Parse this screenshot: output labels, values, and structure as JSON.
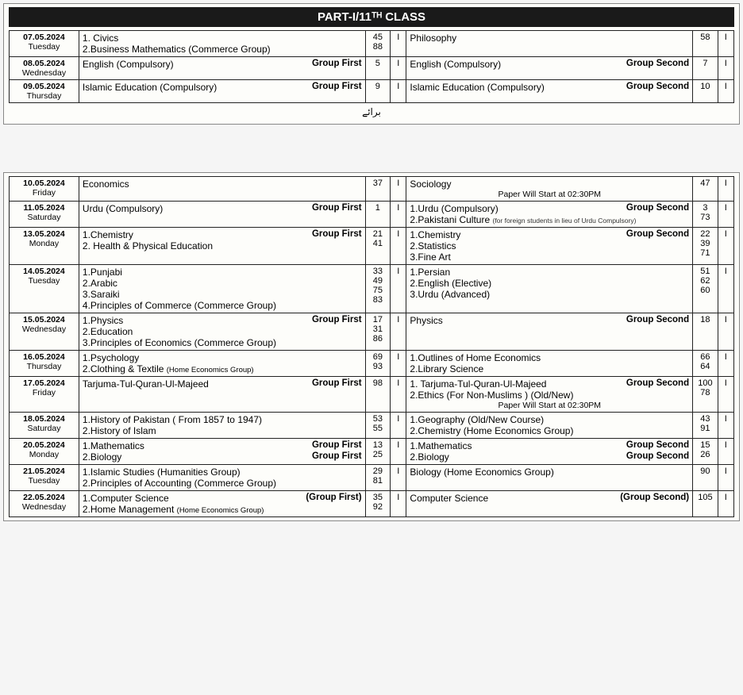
{
  "header": {
    "title": "PART-I/11ᵀᴴ CLASS"
  },
  "footer_urdu": "برائے",
  "section1_rows": [
    {
      "date": "07.05.2024",
      "day": "Tuesday",
      "left_lines": [
        {
          "text": "1. Civics",
          "tag": ""
        },
        {
          "text": "2.Business Mathematics   (Commerce Group)",
          "tag": ""
        }
      ],
      "left_nums": [
        "45",
        "88"
      ],
      "left_sess": "I",
      "right_lines": [
        {
          "text": "Philosophy",
          "tag": ""
        }
      ],
      "right_nums": [
        "58"
      ],
      "right_sess": "I"
    },
    {
      "date": "08.05.2024",
      "day": "Wednesday",
      "left_lines": [
        {
          "text": "English  (Compulsory)",
          "tag": "Group First"
        }
      ],
      "left_nums": [
        "5"
      ],
      "left_sess": "I",
      "right_lines": [
        {
          "text": "English (Compulsory)",
          "tag": "Group  Second"
        }
      ],
      "right_nums": [
        "7"
      ],
      "right_sess": "I"
    },
    {
      "date": "09.05.2024",
      "day": "Thursday",
      "left_lines": [
        {
          "text": "Islamic Education (Compulsory)",
          "tag": "Group First"
        }
      ],
      "left_nums": [
        "9"
      ],
      "left_sess": "I",
      "right_lines": [
        {
          "text": "Islamic Education (Compulsory)",
          "tag": "Group  Second"
        }
      ],
      "right_nums": [
        "10"
      ],
      "right_sess": "I"
    }
  ],
  "section2_rows": [
    {
      "date": "10.05.2024",
      "day": "Friday",
      "left_lines": [
        {
          "text": "Economics",
          "tag": ""
        }
      ],
      "left_nums": [
        "37"
      ],
      "left_sess": "I",
      "right_lines": [
        {
          "text": "Sociology",
          "tag": ""
        },
        {
          "text": "",
          "tag": "",
          "note": "Paper Will Start at 02:30PM"
        }
      ],
      "right_nums": [
        "47"
      ],
      "right_sess": "I"
    },
    {
      "date": "11.05.2024",
      "day": "Saturday",
      "left_lines": [
        {
          "text": "Urdu (Compulsory)",
          "tag": "Group First"
        }
      ],
      "left_nums": [
        "1"
      ],
      "left_sess": "I",
      "right_lines": [
        {
          "text": "1.Urdu (Compulsory)",
          "tag": "Group Second"
        },
        {
          "text": "2.Pakistani Culture",
          "tag": "",
          "xnote": "(for foreign students in lieu of Urdu Compulsory)"
        }
      ],
      "right_nums": [
        "3",
        "73"
      ],
      "right_sess": "I"
    },
    {
      "date": "13.05.2024",
      "day": "Monday",
      "left_lines": [
        {
          "text": "1.Chemistry",
          "tag": "Group First"
        },
        {
          "text": "2. Health & Physical Education",
          "tag": ""
        }
      ],
      "left_nums": [
        "21",
        "41"
      ],
      "left_sess": "I",
      "right_lines": [
        {
          "text": "1.Chemistry",
          "tag": "Group Second"
        },
        {
          "text": "2.Statistics",
          "tag": ""
        },
        {
          "text": "3.Fine Art",
          "tag": ""
        }
      ],
      "right_nums": [
        "22",
        "39",
        "71"
      ],
      "right_sess": "I"
    },
    {
      "date": "14.05.2024",
      "day": "Tuesday",
      "left_lines": [
        {
          "text": "1.Punjabi",
          "tag": ""
        },
        {
          "text": "2.Arabic",
          "tag": ""
        },
        {
          "text": "3.Saraiki",
          "tag": ""
        },
        {
          "text": "4.Principles of Commerce (Commerce Group)",
          "tag": ""
        }
      ],
      "left_nums": [
        "33",
        "49",
        "75",
        "83"
      ],
      "left_sess": "I",
      "right_lines": [
        {
          "text": "1.Persian",
          "tag": ""
        },
        {
          "text": "2.English (Elective)",
          "tag": ""
        },
        {
          "text": "3.Urdu (Advanced)",
          "tag": ""
        }
      ],
      "right_nums": [
        "51",
        "62",
        "60"
      ],
      "right_sess": "I"
    },
    {
      "date": "15.05.2024",
      "day": "Wednesday",
      "left_lines": [
        {
          "text": "1.Physics",
          "tag": "Group First"
        },
        {
          "text": "2.Education",
          "tag": ""
        },
        {
          "text": "3.Principles of Economics (Commerce Group)",
          "tag": ""
        }
      ],
      "left_nums": [
        "17",
        "31",
        "86"
      ],
      "left_sess": "I",
      "right_lines": [
        {
          "text": "Physics",
          "tag": "Group Second"
        }
      ],
      "right_nums": [
        "18"
      ],
      "right_sess": "I"
    },
    {
      "date": "16.05.2024",
      "day": "Thursday",
      "left_lines": [
        {
          "text": "1.Psychology",
          "tag": ""
        },
        {
          "text": "2.Clothing & Textile",
          "tag": "",
          "subnote": "(Home Economics Group)"
        }
      ],
      "left_nums": [
        "69",
        "93"
      ],
      "left_sess": "I",
      "right_lines": [
        {
          "text": "1.Outlines of Home Economics",
          "tag": ""
        },
        {
          "text": "2.Library Science",
          "tag": ""
        }
      ],
      "right_nums": [
        "66",
        "64"
      ],
      "right_sess": "I"
    },
    {
      "date": "17.05.2024",
      "day": "Friday",
      "left_lines": [
        {
          "text": "Tarjuma-Tul-Quran-Ul-Majeed",
          "tag": "Group First"
        }
      ],
      "left_nums": [
        "98"
      ],
      "left_sess": "I",
      "right_lines": [
        {
          "text": "1. Tarjuma-Tul-Quran-Ul-Majeed",
          "tag": "Group Second"
        },
        {
          "text": "2.Ethics (For Non-Muslims ) (Old/New)",
          "tag": ""
        },
        {
          "text": "",
          "tag": "",
          "note": "Paper Will Start at 02:30PM"
        }
      ],
      "right_nums": [
        "100",
        "78"
      ],
      "right_sess": "I"
    },
    {
      "date": "18.05.2024",
      "day": "Saturday",
      "left_lines": [
        {
          "text": "1.History of Pakistan  ( From 1857 to 1947)",
          "tag": ""
        },
        {
          "text": "2.History of Islam",
          "tag": ""
        }
      ],
      "left_nums": [
        "53",
        "55"
      ],
      "left_sess": "I",
      "right_lines": [
        {
          "text": "1.Geography   (Old/New Course)",
          "tag": ""
        },
        {
          "text": "2.Chemistry   (Home Economics Group)",
          "tag": ""
        }
      ],
      "right_nums": [
        "43",
        "91"
      ],
      "right_sess": "I"
    },
    {
      "date": "20.05.2024",
      "day": "Monday",
      "left_lines": [
        {
          "text": "1.Mathematics",
          "tag": "Group First"
        },
        {
          "text": "2.Biology",
          "tag": "Group First"
        }
      ],
      "left_nums": [
        "13",
        "25"
      ],
      "left_sess": "I",
      "right_lines": [
        {
          "text": "1.Mathematics",
          "tag": "Group Second"
        },
        {
          "text": "2.Biology",
          "tag": "Group Second"
        }
      ],
      "right_nums": [
        "15",
        "26"
      ],
      "right_sess": "I"
    },
    {
      "date": "21.05.2024",
      "day": "Tuesday",
      "left_lines": [
        {
          "text": "1.Islamic Studies (Humanities Group)",
          "tag": ""
        },
        {
          "text": "2.Principles of Accounting   (Commerce Group)",
          "tag": ""
        }
      ],
      "left_nums": [
        "29",
        "81"
      ],
      "left_sess": "I",
      "right_lines": [
        {
          "text": "Biology (Home Economics Group)",
          "tag": ""
        }
      ],
      "right_nums": [
        "90"
      ],
      "right_sess": "I"
    },
    {
      "date": "22.05.2024",
      "day": "Wednesday",
      "left_lines": [
        {
          "text": "1.Computer Science",
          "tag": "(Group First)"
        },
        {
          "text": "2.Home Management",
          "tag": "",
          "subnote": "(Home Economics Group)"
        }
      ],
      "left_nums": [
        "35",
        "92"
      ],
      "left_sess": "I",
      "right_lines": [
        {
          "text": "Computer Science",
          "tag": "(Group Second)"
        }
      ],
      "right_nums": [
        "105"
      ],
      "right_sess": "I"
    }
  ]
}
